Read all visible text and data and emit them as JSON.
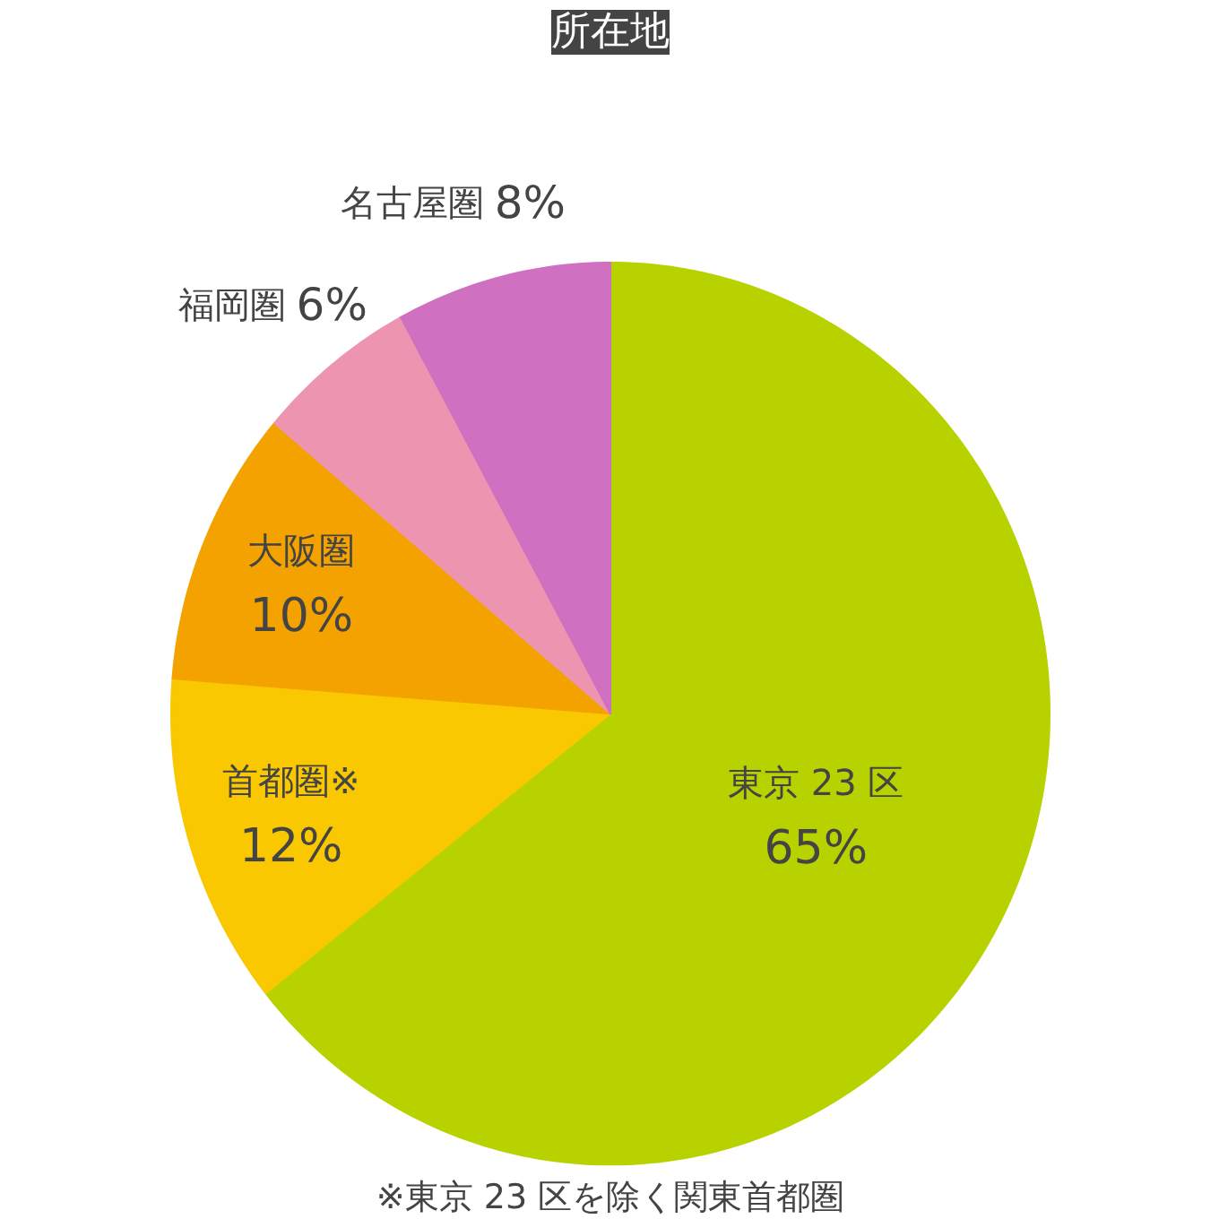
{
  "chart_data": {
    "type": "pie",
    "title": "所在地",
    "categories": [
      "東京 23 区",
      "首都圏※",
      "大阪圏",
      "福岡圏",
      "名古屋圏"
    ],
    "values": [
      65,
      12,
      10,
      6,
      8
    ],
    "value_labels": [
      "65%",
      "12%",
      "10%",
      "6%",
      "8%"
    ],
    "colors": [
      "#b8d200",
      "#f9c800",
      "#f4a200",
      "#ed95b0",
      "#d070c0"
    ],
    "annotations": [
      "※東京 23 区を除く関東首都圏"
    ]
  }
}
